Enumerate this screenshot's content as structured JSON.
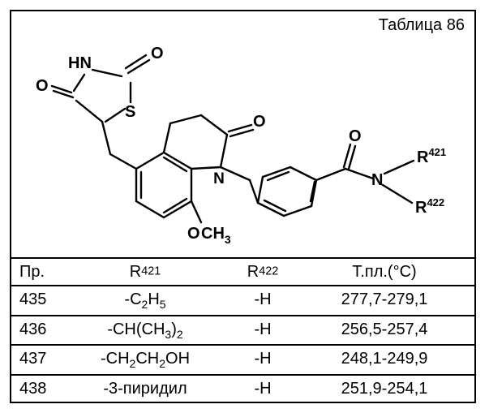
{
  "title": "Таблица 86",
  "structure_labels": {
    "HN": "HN",
    "O1": "O",
    "O2": "O",
    "S": "S",
    "O3": "O",
    "O4": "O",
    "N": "N",
    "OCH3": "CH",
    "O5": "O",
    "R421": "R",
    "R421_sup": "421",
    "R422": "R",
    "R422_sup": "422"
  },
  "columns": {
    "pr": "Пр.",
    "r421": "R",
    "r421_sup": "421",
    "r422": "R",
    "r422_sup": "422",
    "tm": "Т.пл.(°C)"
  },
  "rows": [
    {
      "pr": "435",
      "r421_html": "-C<sub>2</sub>H<sub>5</sub>",
      "r422": "-H",
      "tm": "277,7-279,1"
    },
    {
      "pr": "436",
      "r421_html": "-CH(CH<sub>3</sub>)<sub>2</sub>",
      "r422": "-H",
      "tm": "256,5-257,4"
    },
    {
      "pr": "437",
      "r421_html": "-CH<sub>2</sub>CH<sub>2</sub>OH",
      "r422": "-H",
      "tm": "248,1-249,9"
    },
    {
      "pr": "438",
      "r421_html": "-3-пиридил",
      "r422": "-H",
      "tm": "251,9-254,1"
    }
  ],
  "diagram_style": {
    "stroke": "#000000",
    "stroke_width": 2.2,
    "font": "bold 20px Arial"
  }
}
